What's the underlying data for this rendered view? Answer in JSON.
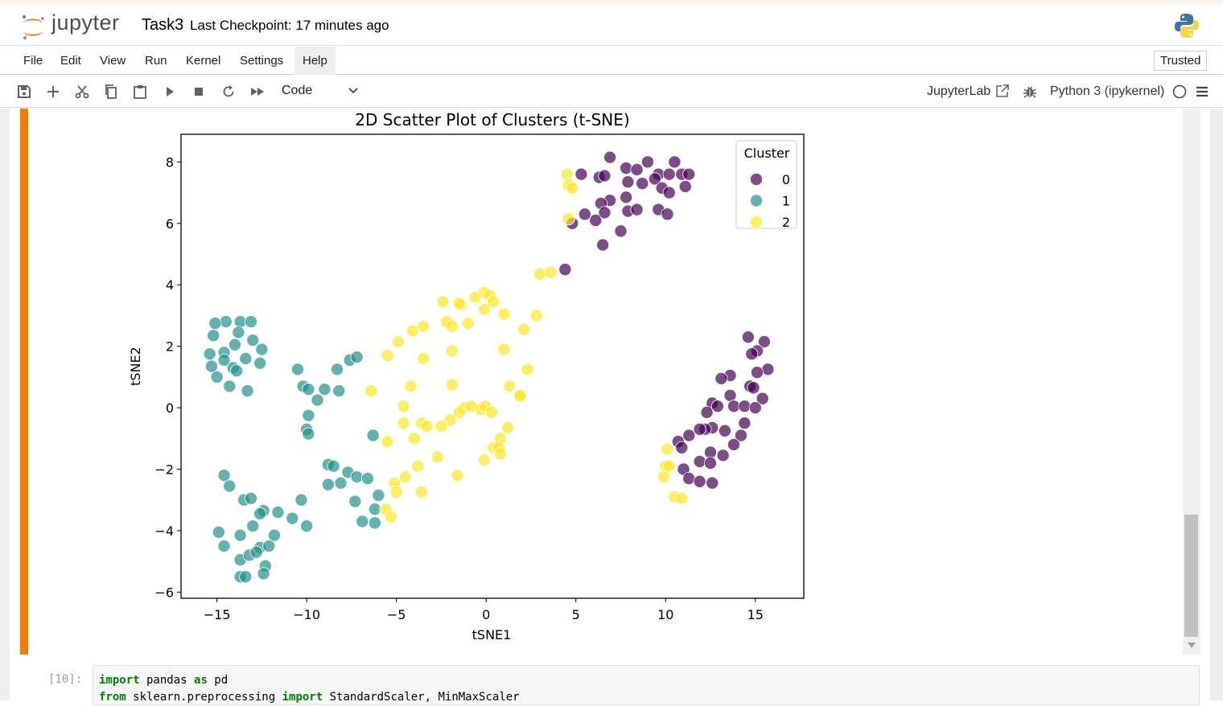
{
  "app": {
    "logo_text": "jupyter",
    "notebook_title": "Task3",
    "checkpoint": "Last Checkpoint: 17 minutes ago"
  },
  "menu": {
    "items": [
      "File",
      "Edit",
      "View",
      "Run",
      "Kernel",
      "Settings",
      "Help"
    ],
    "active": "Help",
    "trusted": "Trusted"
  },
  "toolbar": {
    "icons": [
      "save-icon",
      "add-cell-icon",
      "cut-icon",
      "copy-icon",
      "paste-icon",
      "run-icon",
      "stop-icon",
      "restart-icon",
      "fast-forward-icon"
    ],
    "cell_type": "Code",
    "jupyterlab_label": "JupyterLab",
    "kernel_label": "Python 3 (ipykernel)"
  },
  "colors": {
    "cluster0": "#440154",
    "cluster1": "#21918c",
    "cluster2": "#fde725",
    "cell_accent": "#f57c00"
  },
  "chart_data": {
    "type": "scatter",
    "title": "2D Scatter Plot of Clusters (t-SNE)",
    "xlabel": "tSNE1",
    "ylabel": "tSNE2",
    "xlim": [
      -17,
      17.7
    ],
    "ylim": [
      -6.2,
      8.9
    ],
    "xticks": [
      -15,
      -10,
      -5,
      0,
      5,
      10,
      15
    ],
    "yticks": [
      -6,
      -4,
      -2,
      0,
      2,
      4,
      6,
      8
    ],
    "xtick_labels": [
      "−15",
      "−10",
      "−5",
      "0",
      "5",
      "10",
      "15"
    ],
    "ytick_labels": [
      "−6",
      "−4",
      "−2",
      "0",
      "2",
      "4",
      "6",
      "8"
    ],
    "legend": {
      "title": "Cluster",
      "position": "top-right",
      "entries": [
        "0",
        "1",
        "2"
      ]
    },
    "grid": false,
    "series": [
      {
        "name": "0",
        "points": [
          [
            6.9,
            8.15
          ],
          [
            5.3,
            7.6
          ],
          [
            6.3,
            7.5
          ],
          [
            6.6,
            7.55
          ],
          [
            7.8,
            7.8
          ],
          [
            8.4,
            7.75
          ],
          [
            9.0,
            8.0
          ],
          [
            9.6,
            7.6
          ],
          [
            10.2,
            7.6
          ],
          [
            10.5,
            8.0
          ],
          [
            10.9,
            7.6
          ],
          [
            11.3,
            7.6
          ],
          [
            7.9,
            7.35
          ],
          [
            8.7,
            7.3
          ],
          [
            9.4,
            7.45
          ],
          [
            9.8,
            7.15
          ],
          [
            10.2,
            7.0
          ],
          [
            11.1,
            7.2
          ],
          [
            7.8,
            6.85
          ],
          [
            6.9,
            6.75
          ],
          [
            6.4,
            6.65
          ],
          [
            6.6,
            6.35
          ],
          [
            5.5,
            6.3
          ],
          [
            6.1,
            6.1
          ],
          [
            4.8,
            6.0
          ],
          [
            7.9,
            6.4
          ],
          [
            8.4,
            6.45
          ],
          [
            9.6,
            6.45
          ],
          [
            10.1,
            6.3
          ],
          [
            7.5,
            5.75
          ],
          [
            6.5,
            5.3
          ],
          [
            4.4,
            4.5
          ],
          [
            14.6,
            2.3
          ],
          [
            15.5,
            2.15
          ],
          [
            15.1,
            1.85
          ],
          [
            14.8,
            1.75
          ],
          [
            15.7,
            1.25
          ],
          [
            15.1,
            1.15
          ],
          [
            13.6,
            1.05
          ],
          [
            13.1,
            0.95
          ],
          [
            14.7,
            0.7
          ],
          [
            14.9,
            0.65
          ],
          [
            13.6,
            0.4
          ],
          [
            15.4,
            0.3
          ],
          [
            12.6,
            0.15
          ],
          [
            12.9,
            0.05
          ],
          [
            13.8,
            0.05
          ],
          [
            14.4,
            0.05
          ],
          [
            15.0,
            0.0
          ],
          [
            12.3,
            -0.15
          ],
          [
            14.4,
            -0.5
          ],
          [
            12.6,
            -0.65
          ],
          [
            12.2,
            -0.7
          ],
          [
            11.9,
            -0.7
          ],
          [
            13.3,
            -0.75
          ],
          [
            11.3,
            -0.9
          ],
          [
            14.2,
            -0.9
          ],
          [
            10.7,
            -1.1
          ],
          [
            10.9,
            -1.3
          ],
          [
            13.8,
            -1.2
          ],
          [
            12.5,
            -1.45
          ],
          [
            13.2,
            -1.55
          ],
          [
            11.9,
            -1.75
          ],
          [
            12.5,
            -1.8
          ],
          [
            11.0,
            -2.0
          ],
          [
            11.3,
            -2.3
          ],
          [
            11.9,
            -2.4
          ],
          [
            12.6,
            -2.45
          ]
        ]
      },
      {
        "name": "1",
        "points": [
          [
            -14.5,
            2.8
          ],
          [
            -13.7,
            2.8
          ],
          [
            -13.1,
            2.8
          ],
          [
            -15.1,
            2.75
          ],
          [
            -13.8,
            2.45
          ],
          [
            -15.2,
            2.35
          ],
          [
            -13.0,
            2.2
          ],
          [
            -14.0,
            2.05
          ],
          [
            -12.5,
            1.9
          ],
          [
            -14.6,
            1.8
          ],
          [
            -15.4,
            1.75
          ],
          [
            -13.4,
            1.6
          ],
          [
            -14.6,
            1.55
          ],
          [
            -12.6,
            1.45
          ],
          [
            -15.3,
            1.35
          ],
          [
            -14.1,
            1.3
          ],
          [
            -13.9,
            1.2
          ],
          [
            -15.0,
            1.0
          ],
          [
            -14.3,
            0.7
          ],
          [
            -13.3,
            0.55
          ],
          [
            -10.5,
            1.25
          ],
          [
            -10.2,
            0.7
          ],
          [
            -9.0,
            0.6
          ],
          [
            -8.2,
            0.55
          ],
          [
            -8.3,
            1.25
          ],
          [
            -7.6,
            1.55
          ],
          [
            -7.2,
            1.65
          ],
          [
            -9.9,
            0.6
          ],
          [
            -9.4,
            0.25
          ],
          [
            -9.9,
            -0.25
          ],
          [
            -10.0,
            -0.7
          ],
          [
            -9.9,
            -0.85
          ],
          [
            -6.3,
            -0.9
          ],
          [
            -14.6,
            -2.2
          ],
          [
            -14.3,
            -2.55
          ],
          [
            -13.5,
            -3.0
          ],
          [
            -13.1,
            -2.95
          ],
          [
            -12.4,
            -3.35
          ],
          [
            -12.6,
            -3.45
          ],
          [
            -11.6,
            -3.4
          ],
          [
            -10.3,
            -3.0
          ],
          [
            -10.8,
            -3.6
          ],
          [
            -10.0,
            -3.85
          ],
          [
            -14.9,
            -4.05
          ],
          [
            -13.7,
            -4.15
          ],
          [
            -13.0,
            -3.85
          ],
          [
            -14.6,
            -4.5
          ],
          [
            -12.6,
            -4.55
          ],
          [
            -11.8,
            -4.15
          ],
          [
            -12.1,
            -4.5
          ],
          [
            -13.7,
            -4.95
          ],
          [
            -13.2,
            -4.8
          ],
          [
            -12.8,
            -4.7
          ],
          [
            -12.3,
            -5.15
          ],
          [
            -12.4,
            -5.4
          ],
          [
            -13.7,
            -5.5
          ],
          [
            -13.4,
            -5.5
          ],
          [
            -8.8,
            -1.85
          ],
          [
            -8.5,
            -1.9
          ],
          [
            -8.1,
            -2.45
          ],
          [
            -7.7,
            -2.1
          ],
          [
            -7.2,
            -2.25
          ],
          [
            -6.6,
            -2.3
          ],
          [
            -8.8,
            -2.5
          ],
          [
            -7.3,
            -3.05
          ],
          [
            -6.2,
            -3.3
          ],
          [
            -6.0,
            -2.85
          ],
          [
            -6.9,
            -3.7
          ],
          [
            -6.2,
            -3.75
          ]
        ]
      },
      {
        "name": "2",
        "points": [
          [
            -0.1,
            3.75
          ],
          [
            0.2,
            3.65
          ],
          [
            0.4,
            3.45
          ],
          [
            -2.4,
            3.45
          ],
          [
            -1.4,
            3.35
          ],
          [
            -1.5,
            3.4
          ],
          [
            -0.6,
            3.6
          ],
          [
            -0.1,
            3.2
          ],
          [
            1.0,
            3.05
          ],
          [
            2.8,
            3.0
          ],
          [
            -2.2,
            2.8
          ],
          [
            -1.9,
            2.65
          ],
          [
            -1.0,
            2.75
          ],
          [
            -3.5,
            2.65
          ],
          [
            -4.1,
            2.5
          ],
          [
            -4.9,
            2.15
          ],
          [
            2.1,
            2.55
          ],
          [
            -1.9,
            1.85
          ],
          [
            -5.5,
            1.7
          ],
          [
            -3.5,
            1.6
          ],
          [
            1.0,
            1.9
          ],
          [
            2.3,
            1.25
          ],
          [
            -1.9,
            0.75
          ],
          [
            -4.2,
            0.7
          ],
          [
            -6.4,
            0.55
          ],
          [
            1.3,
            0.7
          ],
          [
            1.9,
            0.4
          ],
          [
            1.9,
            0.4
          ],
          [
            -4.6,
            0.05
          ],
          [
            -1.2,
            0.0
          ],
          [
            -0.8,
            0.05
          ],
          [
            -0.3,
            -0.05
          ],
          [
            -0.05,
            0.05
          ],
          [
            0.3,
            -0.15
          ],
          [
            -1.5,
            -0.15
          ],
          [
            -2.0,
            -0.4
          ],
          [
            -4.6,
            -0.5
          ],
          [
            -3.6,
            -0.5
          ],
          [
            -3.3,
            -0.6
          ],
          [
            -2.5,
            -0.6
          ],
          [
            1.2,
            -0.65
          ],
          [
            -4.0,
            -1.0
          ],
          [
            -5.5,
            -1.1
          ],
          [
            0.8,
            -1.0
          ],
          [
            0.4,
            -1.3
          ],
          [
            0.7,
            -1.3
          ],
          [
            0.8,
            -1.5
          ],
          [
            -2.7,
            -1.6
          ],
          [
            -0.1,
            -1.7
          ],
          [
            -3.8,
            -1.9
          ],
          [
            -1.6,
            -2.2
          ],
          [
            -4.5,
            -2.25
          ],
          [
            -5.1,
            -2.45
          ],
          [
            -5.0,
            -2.75
          ],
          [
            -3.6,
            -2.75
          ],
          [
            -5.6,
            -3.3
          ],
          [
            -5.3,
            -3.55
          ],
          [
            10.1,
            -1.35
          ],
          [
            10.0,
            -1.9
          ],
          [
            10.2,
            -1.9
          ],
          [
            9.9,
            -2.25
          ],
          [
            10.5,
            -2.9
          ],
          [
            10.9,
            -2.95
          ],
          [
            4.5,
            7.6
          ],
          [
            4.6,
            7.25
          ],
          [
            4.8,
            7.15
          ],
          [
            4.6,
            6.15
          ],
          [
            3.0,
            4.35
          ],
          [
            3.6,
            4.4
          ]
        ]
      }
    ]
  },
  "next_cell": {
    "prompt": "[10]:",
    "line1": [
      "import",
      " pandas ",
      "as",
      " pd"
    ],
    "line2": [
      "from",
      " sklearn.preprocessing ",
      "import",
      " StandardScaler, MinMaxScaler"
    ]
  }
}
